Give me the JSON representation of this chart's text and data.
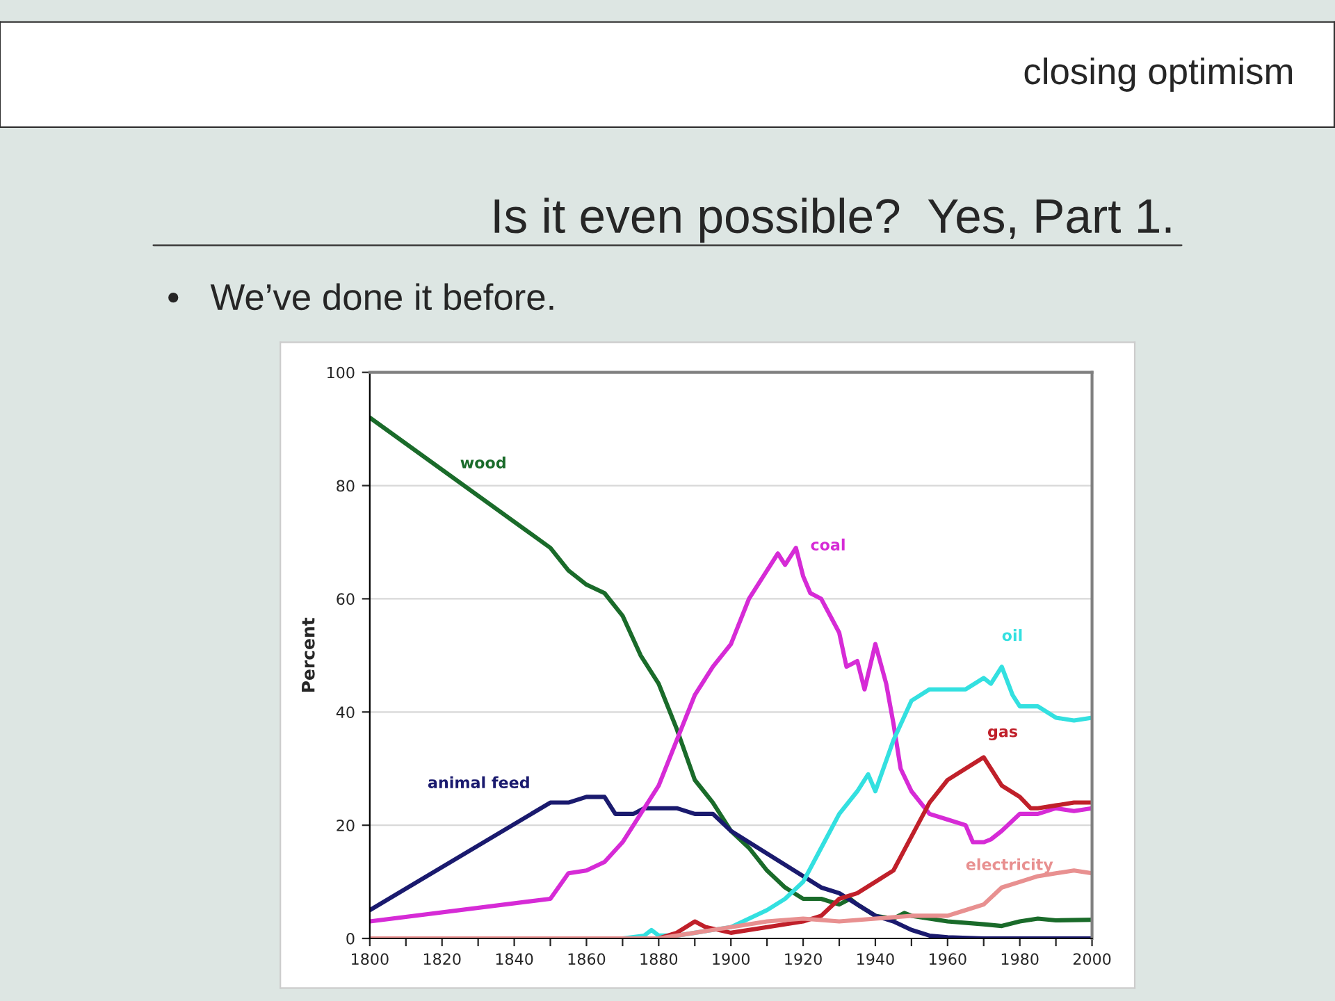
{
  "chart_data": {
    "type": "line",
    "title": "Is it even possible?  Yes, Part 1.",
    "ylabel": "Percent",
    "annotations": [
      "closing optimism",
      "•   We’ve done it before."
    ],
    "xlim": [
      1800,
      2000
    ],
    "ylim": [
      0,
      100
    ],
    "xticks": [
      1800,
      {
        "value": 1810,
        "label": null
      },
      1820,
      {
        "value": 1830,
        "label": null
      },
      1840,
      {
        "value": 1850,
        "label": null
      },
      1860,
      {
        "value": 1870,
        "label": null
      },
      1880,
      {
        "value": 1890,
        "label": null
      },
      1900,
      {
        "value": 1910,
        "label": null
      },
      1920,
      {
        "value": 1930,
        "label": null
      },
      1940,
      {
        "value": 1950,
        "label": null
      },
      1960,
      {
        "value": 1970,
        "label": null
      },
      1980,
      {
        "value": 1990,
        "label": null
      },
      2000
    ],
    "yticks": [
      0,
      20,
      40,
      60,
      80,
      100
    ],
    "grid": "y",
    "legend": false,
    "marker": "none",
    "line_style": "solid",
    "series": [
      {
        "name": "wood",
        "color": "#1a6b2a",
        "x": [
          1800,
          1850,
          1855,
          1860,
          1865,
          1870,
          1875,
          1880,
          1885,
          1890,
          1895,
          1900,
          1905,
          1910,
          1915,
          1920,
          1925,
          1930,
          1933,
          1935,
          1940,
          1945,
          1948,
          1950,
          1955,
          1960,
          1970,
          1975,
          1980,
          1985,
          1990,
          2000
        ],
        "values": [
          92,
          69,
          65,
          62.5,
          61,
          57,
          50,
          45,
          37,
          28,
          24,
          19,
          16,
          12,
          9,
          7,
          7,
          6,
          7,
          6,
          4,
          3.5,
          4.5,
          4,
          3.5,
          3,
          2.5,
          2.2,
          3,
          3.5,
          3.2,
          3.3
        ]
      },
      {
        "name": "animal feed",
        "color": "#1a1a6e",
        "x": [
          1800,
          1850,
          1855,
          1860,
          1865,
          1868,
          1873,
          1876,
          1885,
          1890,
          1895,
          1900,
          1905,
          1910,
          1915,
          1920,
          1925,
          1930,
          1935,
          1940,
          1945,
          1950,
          1955,
          1960,
          1970,
          2000
        ],
        "values": [
          5,
          24,
          24,
          25,
          25,
          22,
          22,
          23,
          23,
          22,
          22,
          19,
          17,
          15,
          13,
          11,
          9,
          8,
          6,
          4,
          3,
          1.5,
          0.5,
          0.2,
          0,
          0
        ]
      },
      {
        "name": "coal",
        "color": "#d62bd6",
        "x": [
          1800,
          1850,
          1855,
          1860,
          1865,
          1870,
          1875,
          1880,
          1885,
          1890,
          1895,
          1900,
          1905,
          1910,
          1913,
          1915,
          1918,
          1920,
          1922,
          1925,
          1930,
          1932,
          1935,
          1937,
          1940,
          1943,
          1945,
          1947,
          1950,
          1955,
          1960,
          1965,
          1967,
          1970,
          1972,
          1975,
          1980,
          1985,
          1990,
          1995,
          2000
        ],
        "values": [
          3,
          7,
          11.5,
          12,
          13.5,
          17,
          22,
          27,
          35,
          43,
          48,
          52,
          60,
          65,
          68,
          66,
          69,
          64,
          61,
          60,
          54,
          48,
          49,
          44,
          52,
          45,
          38,
          30,
          26,
          22,
          21,
          20,
          17,
          17,
          17.5,
          19,
          22,
          22,
          23,
          22.5,
          23
        ]
      },
      {
        "name": "oil",
        "color": "#33e0e0",
        "x": [
          1800,
          1870,
          1876,
          1878,
          1880,
          1885,
          1890,
          1895,
          1900,
          1905,
          1910,
          1915,
          1920,
          1925,
          1930,
          1935,
          1938,
          1940,
          1945,
          1950,
          1955,
          1960,
          1965,
          1970,
          1972,
          1975,
          1978,
          1980,
          1985,
          1990,
          1995,
          2000
        ],
        "values": [
          0,
          0,
          0.5,
          1.5,
          0.5,
          0.5,
          1,
          1.5,
          2,
          3.5,
          5,
          7,
          10,
          16,
          22,
          26,
          29,
          26,
          35,
          42,
          44,
          44,
          44,
          46,
          45,
          48,
          43,
          41,
          41,
          39,
          38.5,
          39
        ]
      },
      {
        "name": "gas",
        "color": "#c0202a",
        "x": [
          1800,
          1880,
          1885,
          1890,
          1893,
          1900,
          1910,
          1920,
          1925,
          1930,
          1935,
          1940,
          1945,
          1950,
          1955,
          1960,
          1965,
          1970,
          1972,
          1975,
          1980,
          1983,
          1985,
          1990,
          1995,
          2000
        ],
        "values": [
          0,
          0,
          1,
          3,
          2,
          1,
          2,
          3,
          4,
          7,
          8,
          10,
          12,
          18,
          24,
          28,
          30,
          32,
          30,
          27,
          25,
          23,
          23,
          23.5,
          24,
          24
        ]
      },
      {
        "name": "electricity",
        "color": "#e89090",
        "x": [
          1800,
          1880,
          1890,
          1900,
          1910,
          1920,
          1930,
          1940,
          1950,
          1960,
          1965,
          1970,
          1975,
          1980,
          1985,
          1990,
          1995,
          2000
        ],
        "values": [
          0,
          0,
          1,
          2,
          3,
          3.5,
          3,
          3.5,
          4,
          4,
          5,
          6,
          9,
          10,
          11,
          11.5,
          12,
          11.5
        ]
      }
    ]
  }
}
